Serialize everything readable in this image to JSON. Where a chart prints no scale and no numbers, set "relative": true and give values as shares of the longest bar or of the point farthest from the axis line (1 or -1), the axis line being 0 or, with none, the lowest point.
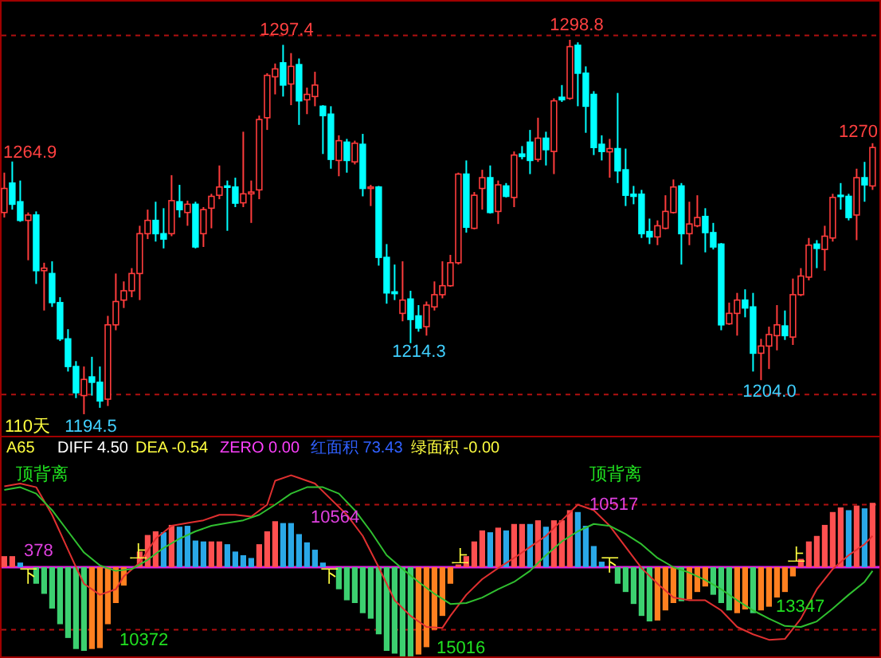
{
  "chart_data": [
    {
      "type": "candlestick",
      "categories": [
        null,
        null,
        null,
        null,
        null,
        null,
        null,
        null,
        null,
        null,
        null,
        null,
        null,
        null,
        null,
        null,
        null,
        null,
        null,
        null,
        null,
        null,
        null,
        null,
        null,
        null,
        null,
        null,
        null,
        null,
        null,
        null,
        null,
        null,
        null,
        null,
        null,
        null,
        null,
        null,
        null,
        null,
        null,
        null,
        null,
        null,
        null,
        null,
        null,
        null,
        null,
        null,
        null,
        null,
        null,
        null,
        null,
        null,
        null,
        null,
        null,
        null,
        null,
        null,
        null,
        null,
        null,
        null,
        null,
        null,
        null,
        null,
        null,
        null,
        null,
        null,
        null,
        null,
        null,
        null,
        null,
        null,
        null,
        null,
        null,
        null,
        null,
        null,
        null,
        null,
        null,
        null,
        null,
        null,
        null,
        null,
        null,
        null,
        null,
        null,
        null,
        null,
        null,
        null,
        null,
        null,
        null,
        null,
        null,
        null
      ],
      "ohlc": [
        [
          1250.7,
          1261.8,
          1249.3,
          1257.4
        ],
        [
          1258.9,
          1264.9,
          1251.5,
          1253.0
        ],
        [
          1253.7,
          1259.6,
          1248.1,
          1248.5
        ],
        [
          1248.5,
          1250.7,
          1237.4,
          1250.0
        ],
        [
          1250.0,
          1251.0,
          1230.8,
          1234.5
        ],
        [
          1234.5,
          1236.7,
          1223.4,
          1235.2
        ],
        [
          1233.7,
          1237.1,
          1224.4,
          1225.6
        ],
        [
          1225.6,
          1227.1,
          1214.9,
          1215.5
        ],
        [
          1215.5,
          1218.2,
          1206.4,
          1207.8
        ],
        [
          1207.8,
          1209.3,
          1199.0,
          1200.5
        ],
        [
          1199.7,
          1207.8,
          1194.5,
          1204.2
        ],
        [
          1204.9,
          1210.5,
          1199.7,
          1203.4
        ],
        [
          1203.4,
          1207.8,
          1196.3,
          1198.2
        ],
        [
          1198.7,
          1221.9,
          1196.8,
          1219.4
        ],
        [
          1219.4,
          1233.7,
          1217.9,
          1225.9
        ],
        [
          1226.3,
          1231.5,
          1224.1,
          1228.9
        ],
        [
          1228.9,
          1235.2,
          1227.1,
          1233.7
        ],
        [
          1233.7,
          1247.0,
          1226.3,
          1244.8
        ],
        [
          1244.8,
          1251.5,
          1243.3,
          1248.5
        ],
        [
          1248.5,
          1253.7,
          1242.6,
          1244.8
        ],
        [
          1244.8,
          1251.9,
          1240.7,
          1243.3
        ],
        [
          1244.8,
          1261.1,
          1244.1,
          1254.0
        ],
        [
          1253.7,
          1258.4,
          1249.3,
          1251.5
        ],
        [
          1250.7,
          1254.0,
          1247.0,
          1253.0
        ],
        [
          1253.0,
          1253.7,
          1240.7,
          1241.1
        ],
        [
          1244.8,
          1252.2,
          1241.1,
          1251.5
        ],
        [
          1251.9,
          1255.9,
          1246.3,
          1255.2
        ],
        [
          1255.5,
          1263.8,
          1254.4,
          1257.8
        ],
        [
          1258.1,
          1259.6,
          1245.6,
          1257.7
        ],
        [
          1257.8,
          1260.4,
          1252.2,
          1253.3
        ],
        [
          1253.4,
          1273.2,
          1252.2,
          1255.9
        ],
        [
          1255.9,
          1259.6,
          1247.8,
          1256.4
        ],
        [
          1257.0,
          1277.7,
          1254.4,
          1276.6
        ],
        [
          1277.1,
          1289.5,
          1273.7,
          1288.9
        ],
        [
          1288.5,
          1292.2,
          1283.6,
          1290.7
        ],
        [
          1292.4,
          1297.4,
          1283.0,
          1286.2
        ],
        [
          1286.5,
          1295.1,
          1280.6,
          1291.4
        ],
        [
          1291.9,
          1293.6,
          1275.1,
          1281.8
        ],
        [
          1282.1,
          1285.5,
          1278.1,
          1283.6
        ],
        [
          1283.0,
          1289.9,
          1280.3,
          1286.2
        ],
        [
          1280.3,
          1280.6,
          1267.0,
          1277.7
        ],
        [
          1278.1,
          1280.3,
          1262.9,
          1265.5
        ],
        [
          1265.2,
          1272.2,
          1260.8,
          1270.7
        ],
        [
          1270.3,
          1271.2,
          1261.8,
          1265.2
        ],
        [
          1264.8,
          1270.7,
          1264.1,
          1270.0
        ],
        [
          1269.7,
          1272.6,
          1255.2,
          1257.4
        ],
        [
          1257.4,
          1258.4,
          1252.5,
          1257.8
        ],
        [
          1257.8,
          1258.1,
          1235.9,
          1238.2
        ],
        [
          1238.2,
          1241.9,
          1225.3,
          1228.3
        ],
        [
          1228.6,
          1236.2,
          1226.3,
          1228.1
        ],
        [
          1222.6,
          1237.1,
          1220.4,
          1226.3
        ],
        [
          1226.6,
          1228.9,
          1214.3,
          1220.9
        ],
        [
          1221.9,
          1224.9,
          1217.5,
          1218.5
        ],
        [
          1218.9,
          1225.9,
          1216.4,
          1224.9
        ],
        [
          1224.4,
          1231.5,
          1223.4,
          1227.8
        ],
        [
          1227.8,
          1237.1,
          1226.8,
          1230.3
        ],
        [
          1230.3,
          1238.9,
          1230.0,
          1236.7
        ],
        [
          1236.7,
          1261.8,
          1236.2,
          1261.4
        ],
        [
          1261.4,
          1265.2,
          1245.1,
          1246.6
        ],
        [
          1246.3,
          1256.4,
          1246.0,
          1255.5
        ],
        [
          1257.4,
          1262.6,
          1251.5,
          1260.4
        ],
        [
          1260.4,
          1263.8,
          1250.4,
          1250.7
        ],
        [
          1251.0,
          1259.6,
          1247.5,
          1258.4
        ],
        [
          1258.1,
          1258.9,
          1254.9,
          1255.2
        ],
        [
          1254.9,
          1267.7,
          1252.2,
          1266.7
        ],
        [
          1267.0,
          1269.2,
          1265.5,
          1266.3
        ],
        [
          1270.3,
          1273.7,
          1261.4,
          1265.2
        ],
        [
          1265.5,
          1277.1,
          1264.8,
          1271.4
        ],
        [
          1271.4,
          1273.2,
          1263.8,
          1268.2
        ],
        [
          1267.7,
          1282.5,
          1261.4,
          1281.8
        ],
        [
          1282.8,
          1286.2,
          1281.5,
          1282.1
        ],
        [
          1282.5,
          1298.8,
          1282.1,
          1296.9
        ],
        [
          1297.3,
          1298.1,
          1280.3,
          1289.5
        ],
        [
          1289.5,
          1291.4,
          1272.9,
          1280.3
        ],
        [
          1283.6,
          1284.5,
          1266.7,
          1268.8
        ],
        [
          1269.7,
          1272.2,
          1265.2,
          1267.7
        ],
        [
          1267.6,
          1271.2,
          1260.4,
          1268.5
        ],
        [
          1268.5,
          1284.0,
          1258.9,
          1262.3
        ],
        [
          1262.6,
          1268.5,
          1252.5,
          1255.5
        ],
        [
          1255.8,
          1258.1,
          1253.0,
          1255.2
        ],
        [
          1255.8,
          1257.0,
          1243.6,
          1244.8
        ],
        [
          1245.4,
          1249.0,
          1241.9,
          1243.9
        ],
        [
          1243.9,
          1248.5,
          1241.6,
          1247.0
        ],
        [
          1246.3,
          1255.5,
          1246.0,
          1251.0
        ],
        [
          1250.7,
          1259.9,
          1250.4,
          1257.8
        ],
        [
          1258.1,
          1258.9,
          1236.2,
          1244.8
        ],
        [
          1244.8,
          1253.7,
          1241.6,
          1247.5
        ],
        [
          1247.0,
          1255.5,
          1246.6,
          1249.3
        ],
        [
          1249.6,
          1251.9,
          1239.6,
          1245.1
        ],
        [
          1245.1,
          1247.8,
          1240.4,
          1241.1
        ],
        [
          1241.9,
          1242.2,
          1217.9,
          1219.4
        ],
        [
          1219.7,
          1225.6,
          1219.4,
          1222.6
        ],
        [
          1222.6,
          1228.3,
          1216.4,
          1226.3
        ],
        [
          1226.3,
          1229.3,
          1221.5,
          1224.1
        ],
        [
          1224.4,
          1228.3,
          1206.4,
          1211.5
        ],
        [
          1211.5,
          1215.5,
          1204.0,
          1213.5
        ],
        [
          1213.5,
          1218.9,
          1207.1,
          1216.7
        ],
        [
          1216.4,
          1224.9,
          1212.3,
          1219.4
        ],
        [
          1219.1,
          1223.4,
          1215.2,
          1216.4
        ],
        [
          1216.0,
          1232.3,
          1213.8,
          1227.8
        ],
        [
          1227.8,
          1235.2,
          1227.4,
          1233.0
        ],
        [
          1232.7,
          1243.6,
          1231.8,
          1241.6
        ],
        [
          1241.9,
          1243.0,
          1235.2,
          1240.7
        ],
        [
          1240.4,
          1247.0,
          1234.5,
          1244.1
        ],
        [
          1243.6,
          1255.9,
          1242.6,
          1254.9
        ],
        [
          1255.5,
          1258.9,
          1251.5,
          1255.2
        ],
        [
          1255.2,
          1255.9,
          1248.5,
          1249.3
        ],
        [
          1250.0,
          1262.9,
          1243.0,
          1260.4
        ],
        [
          1260.4,
          1264.8,
          1253.7,
          1258.4
        ],
        [
          1258.1,
          1270.0,
          1257.0,
          1268.8
        ]
      ],
      "colors": [
        "#ff3c3c",
        "#00ffff",
        "#00ffff",
        "#ff3c3c",
        "#00ffff",
        "#ff3c3c",
        "#00ffff",
        "#00ffff",
        "#00ffff",
        "#00ffff",
        "#ff3c3c",
        "#00ffff",
        "#00ffff",
        "#ff3c3c",
        "#ff3c3c",
        "#ff3c3c",
        "#ff3c3c",
        "#ff3c3c",
        "#ff3c3c",
        "#00ffff",
        "#00ffff",
        "#ff3c3c",
        "#00ffff",
        "#ff3c3c",
        "#00ffff",
        "#ff3c3c",
        "#ff3c3c",
        "#ff3c3c",
        "#00ffff",
        "#00ffff",
        "#ff3c3c",
        "#ff3c3c",
        "#ff3c3c",
        "#ff3c3c",
        "#ff3c3c",
        "#00ffff",
        "#ff3c3c",
        "#00ffff",
        "#ff3c3c",
        "#ff3c3c",
        "#00ffff",
        "#00ffff",
        "#ff3c3c",
        "#00ffff",
        "#ff3c3c",
        "#00ffff",
        "#ff3c3c",
        "#00ffff",
        "#00ffff",
        "#00ffff",
        "#ff3c3c",
        "#00ffff",
        "#00ffff",
        "#ff3c3c",
        "#ff3c3c",
        "#ff3c3c",
        "#ff3c3c",
        "#ff3c3c",
        "#00ffff",
        "#ff3c3c",
        "#ff3c3c",
        "#00ffff",
        "#ff3c3c",
        "#00ffff",
        "#ff3c3c",
        "#00ffff",
        "#00ffff",
        "#ff3c3c",
        "#00ffff",
        "#ff3c3c",
        "#00ffff",
        "#ff3c3c",
        "#00ffff",
        "#00ffff",
        "#00ffff",
        "#00ffff",
        "#ff3c3c",
        "#00ffff",
        "#00ffff",
        "#00ffff",
        "#00ffff",
        "#00ffff",
        "#ff3c3c",
        "#ff3c3c",
        "#ff3c3c",
        "#00ffff",
        "#ff3c3c",
        "#ff3c3c",
        "#00ffff",
        "#00ffff",
        "#00ffff",
        "#ff3c3c",
        "#ff3c3c",
        "#00ffff",
        "#00ffff",
        "#ff3c3c",
        "#ff3c3c",
        "#ff3c3c",
        "#00ffff",
        "#ff3c3c",
        "#ff3c3c",
        "#ff3c3c",
        "#00ffff",
        "#ff3c3c",
        "#ff3c3c",
        "#00ffff",
        "#00ffff",
        "#ff3c3c",
        "#00ffff",
        "#ff3c3c"
      ],
      "ref_lines": [
        {
          "axis": "y",
          "value": 1300,
          "color": "#b01010",
          "line_style": "dashed"
        },
        {
          "axis": "y",
          "value": 1200,
          "color": "#b01010",
          "line_style": "dashed"
        }
      ],
      "annotations": [
        "1297.4",
        "1298.8",
        "1264.9",
        "1214.3",
        "1204.0",
        "1270",
        "1194.5",
        "110天"
      ]
    },
    {
      "type": "bar",
      "relative": true,
      "categories": [
        null,
        null,
        null,
        null,
        null,
        null,
        null,
        null,
        null,
        null,
        null,
        null,
        null,
        null,
        null,
        null,
        null,
        null,
        null,
        null,
        null,
        null,
        null,
        null,
        null,
        null,
        null,
        null,
        null,
        null,
        null,
        null,
        null,
        null,
        null,
        null,
        null,
        null,
        null,
        null,
        null,
        null,
        null,
        null,
        null,
        null,
        null,
        null,
        null,
        null,
        null,
        null,
        null,
        null,
        null,
        null,
        null,
        null,
        null,
        null,
        null,
        null,
        null,
        null,
        null,
        null,
        null,
        null,
        null,
        null,
        null,
        null,
        null,
        null,
        null,
        null,
        null,
        null,
        null,
        null,
        null,
        null,
        null,
        null,
        null,
        null,
        null,
        null,
        null,
        null,
        null,
        null,
        null,
        null,
        null,
        null,
        null,
        null,
        null,
        null,
        null,
        null,
        null,
        null,
        null,
        null,
        null,
        null,
        null,
        null
      ],
      "series": [
        {
          "type": "bar",
          "values": [
            0.12,
            0.12,
            0.05,
            null,
            -0.18,
            -0.29,
            -0.45,
            -0.62,
            -0.77,
            -0.89,
            -0.91,
            -0.89,
            -0.88,
            -0.62,
            -0.39,
            -0.2,
            null,
            0.17,
            0.35,
            0.39,
            0.38,
            0.46,
            0.44,
            0.45,
            0.29,
            0.28,
            0.28,
            0.28,
            0.25,
            0.17,
            0.13,
            0.1,
            0.25,
            0.39,
            0.5,
            0.48,
            0.48,
            0.36,
            0.27,
            0.19,
            0.05,
            null,
            -0.24,
            -0.36,
            -0.39,
            -0.5,
            -0.56,
            -0.73,
            -0.91,
            -0.94,
            -0.97,
            -0.97,
            -0.95,
            -0.87,
            -0.68,
            -0.53,
            -0.18,
            0.03,
            0.12,
            0.28,
            0.4,
            0.38,
            0.43,
            0.4,
            0.47,
            0.47,
            0.47,
            0.51,
            0.44,
            0.51,
            0.51,
            0.62,
            0.6,
            0.45,
            0.23,
            0.06,
            null,
            -0.18,
            -0.27,
            -0.4,
            -0.53,
            -0.59,
            -0.58,
            -0.47,
            -0.39,
            -0.37,
            -0.35,
            -0.27,
            -0.21,
            -0.3,
            -0.39,
            -0.47,
            -0.5,
            -0.46,
            -0.5,
            -0.47,
            -0.43,
            -0.33,
            -0.27,
            -0.1,
            0.09,
            0.28,
            0.34,
            0.46,
            0.6,
            0.65,
            0.62,
            0.67,
            0.64,
            0.7
          ],
          "colors": [
            "#ff5050",
            "#ff5050",
            "#2aa8e8",
            null,
            "#3cd070",
            "#3cd070",
            "#3cd070",
            "#3cd070",
            "#3cd070",
            "#3cd070",
            "#3cd070",
            "#ff8020",
            "#ff8020",
            "#ff8020",
            "#ff8020",
            "#ff8020",
            null,
            "#ff5050",
            "#ff5050",
            "#ff5050",
            "#2aa8e8",
            "#ff5050",
            "#2aa8e8",
            "#2aa8e8",
            "#2aa8e8",
            "#2aa8e8",
            "#ff5050",
            "#ff5050",
            "#2aa8e8",
            "#2aa8e8",
            "#2aa8e8",
            "#2aa8e8",
            "#ff5050",
            "#ff5050",
            "#ff5050",
            "#2aa8e8",
            "#2aa8e8",
            "#2aa8e8",
            "#2aa8e8",
            "#2aa8e8",
            "#2aa8e8",
            null,
            "#3cd070",
            "#3cd070",
            "#3cd070",
            "#3cd070",
            "#3cd070",
            "#3cd070",
            "#3cd070",
            "#3cd070",
            "#3cd070",
            "#3cd070",
            "#ff8020",
            "#ff8020",
            "#ff8020",
            "#ff8020",
            "#ff8020",
            "#ff5050",
            "#ff5050",
            "#ff5050",
            "#ff5050",
            "#2aa8e8",
            "#ff5050",
            "#2aa8e8",
            "#ff5050",
            "#ff5050",
            "#2aa8e8",
            "#ff5050",
            "#2aa8e8",
            "#ff5050",
            "#ff5050",
            "#ff5050",
            "#2aa8e8",
            "#2aa8e8",
            "#2aa8e8",
            "#2aa8e8",
            null,
            "#3cd070",
            "#3cd070",
            "#3cd070",
            "#3cd070",
            "#3cd070",
            "#ff8020",
            "#ff8020",
            "#ff8020",
            "#3cd070",
            "#ff8020",
            "#ff8020",
            "#ff8020",
            "#3cd070",
            "#3cd070",
            "#3cd070",
            "#ff8020",
            "#ff8020",
            "#3cd070",
            "#ff8020",
            "#ff8020",
            "#ff8020",
            "#ff8020",
            "#ff8020",
            "#ff5050",
            "#ff5050",
            "#ff5050",
            "#ff5050",
            "#ff5050",
            "#ff5050",
            "#2aa8e8",
            "#ff5050",
            "#2aa8e8",
            "#ff5050"
          ]
        },
        {
          "type": "line",
          "color": "#e03030",
          "values": [
            0.88,
            null,
            0.91,
            null,
            0.87,
            null,
            0.57,
            null,
            0.19,
            0,
            -0.18,
            null,
            -0.3,
            null,
            -0.24,
            -0.1,
            null,
            0.05,
            null,
            0.31,
            null,
            0.45,
            null,
            0.48,
            null,
            0.51,
            null,
            0.57,
            null,
            0.57,
            null,
            0.55,
            null,
            0.68,
            0.94,
            null,
            1,
            0.97,
            null,
            0.91,
            null,
            0.74,
            null,
            0.57,
            null,
            0.34,
            null,
            0,
            null,
            -0.36,
            null,
            -0.53,
            null,
            -0.65,
            null,
            -0.66,
            -0.53,
            null,
            -0.3,
            null,
            -0.13,
            null,
            -0.01,
            null,
            0.1,
            null,
            0.22,
            null,
            0.34,
            null,
            0.51,
            null,
            0.68,
            null,
            0.62,
            null,
            0.45,
            null,
            0.22,
            null,
            -0.01,
            null,
            -0.18,
            null,
            -0.33,
            null,
            -0.36,
            null,
            -0.36,
            null,
            -0.47,
            null,
            -0.65,
            null,
            -0.73,
            null,
            -0.79,
            null,
            -0.78,
            null,
            -0.56,
            null,
            -0.24,
            null,
            -0.02,
            null,
            0.13,
            null,
            0.25,
            0.34
          ]
        },
        {
          "type": "line",
          "color": "#30c030",
          "values": [
            0.84,
            null,
            0.87,
            null,
            0.8,
            null,
            0.62,
            null,
            0.39,
            null,
            0.16,
            null,
            0.02,
            null,
            -0.04,
            null,
            -0.02,
            null,
            0.08,
            null,
            0.21,
            null,
            0.31,
            null,
            0.39,
            null,
            0.45,
            null,
            0.48,
            null,
            0.51,
            null,
            0.57,
            null,
            0.68,
            null,
            0.8,
            null,
            0.87,
            null,
            0.87,
            null,
            0.8,
            null,
            0.62,
            null,
            0.39,
            null,
            0.13,
            null,
            -0.02,
            null,
            -0.16,
            null,
            -0.29,
            null,
            -0.4,
            null,
            -0.39,
            null,
            -0.33,
            null,
            -0.24,
            null,
            -0.16,
            null,
            -0.04,
            null,
            0.13,
            null,
            0.28,
            null,
            0.39,
            null,
            0.47,
            null,
            0.45,
            null,
            0.36,
            null,
            0.25,
            null,
            0.1,
            null,
            0,
            null,
            -0.06,
            null,
            -0.14,
            null,
            -0.24,
            null,
            -0.36,
            null,
            -0.47,
            null,
            -0.56,
            null,
            -0.64,
            null,
            -0.65,
            null,
            -0.59,
            null,
            -0.45,
            null,
            -0.3,
            null,
            -0.16,
            -0.04
          ]
        }
      ],
      "ref_lines": [
        {
          "axis": "y",
          "value": 0,
          "color": "#e020e0"
        },
        {
          "axis": "y",
          "value": 0.68,
          "color": "#b01010",
          "line_style": "dashed"
        },
        {
          "axis": "y",
          "value": -0.68,
          "color": "#b01010",
          "line_style": "dashed"
        }
      ],
      "annotations": [
        "A65",
        "DIFF 4.50",
        "DEA -0.54",
        "ZERO 0.00",
        "红面积 73.43",
        "绿面积 -0.00",
        "顶背离",
        "顶背离",
        "378",
        "10564",
        "10372",
        "15016",
        "10517",
        "13347",
        "下",
        "上",
        "下",
        "上",
        "下",
        "上"
      ]
    }
  ]
}
